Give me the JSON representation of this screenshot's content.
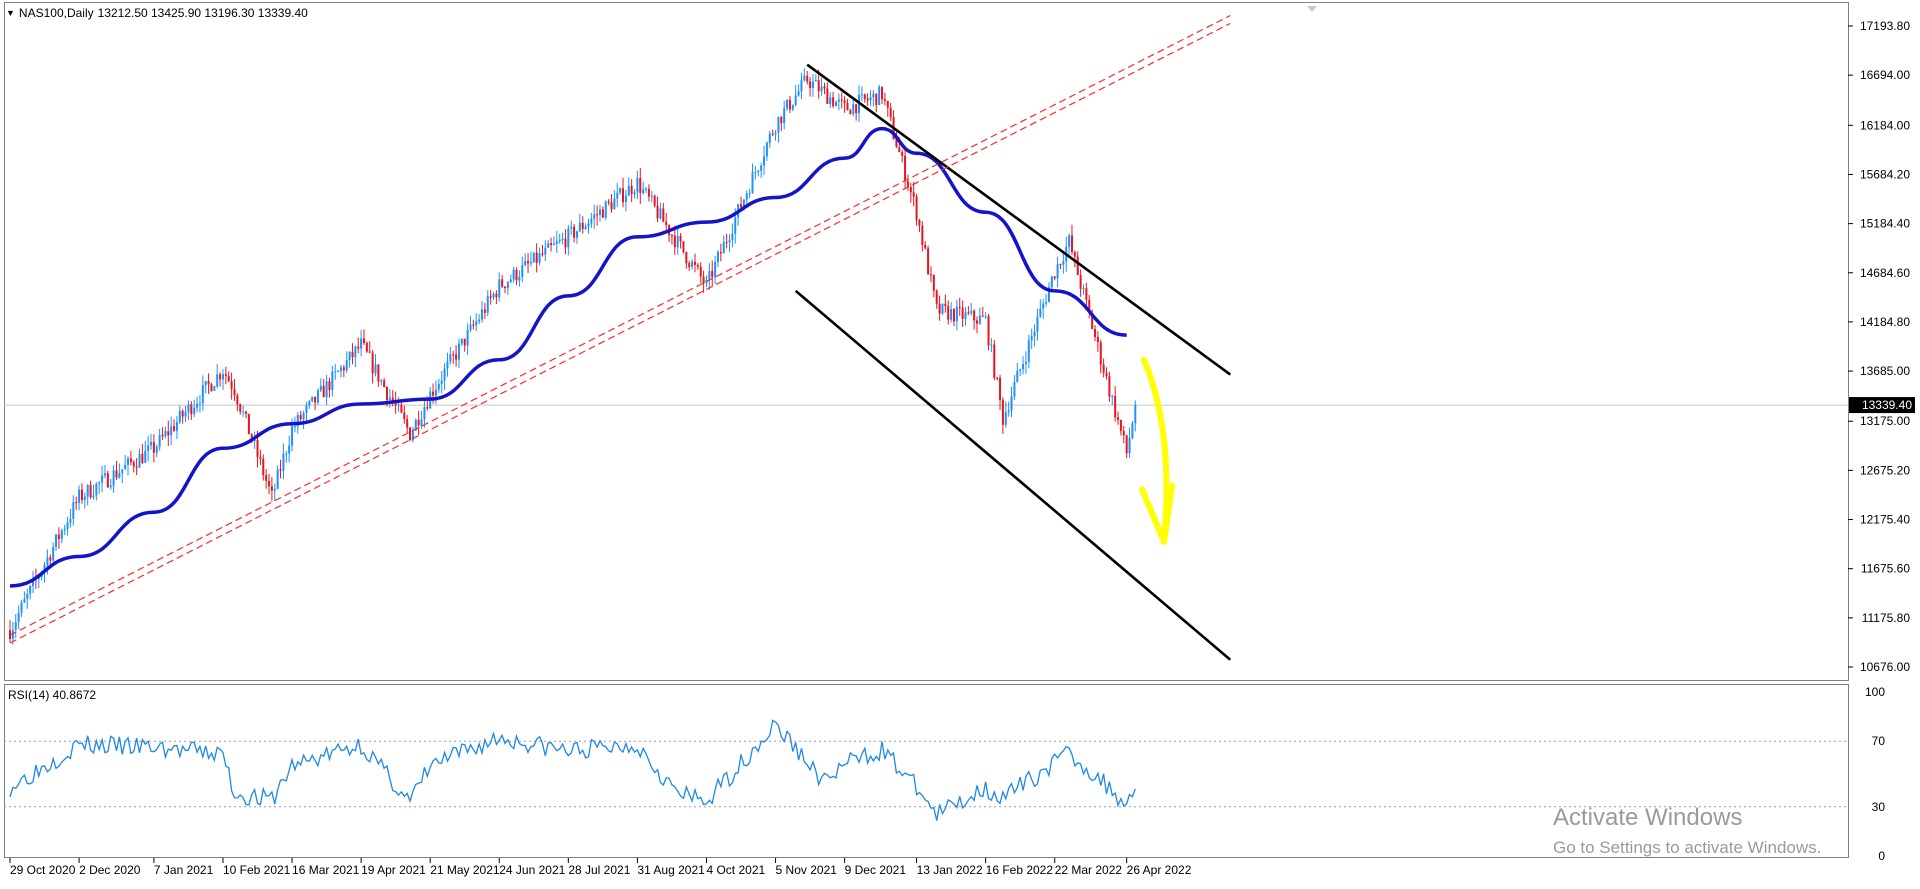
{
  "header": {
    "collapse_icon": "triangle-down-icon",
    "symbol": "NAS100,Daily",
    "ohlc": "13212.50 13425.90 13196.30 13339.40"
  },
  "rsi_label": "RSI(14) 40.8672",
  "watermark": {
    "line1": "Activate Windows",
    "line2": "Go to Settings to activate Windows."
  },
  "colors": {
    "bull": "#1e90ff",
    "bear": "#e8141e",
    "ma": "#1414c8",
    "trend": "#000000",
    "support": "#ff2a2a",
    "arrow": "#ffff00",
    "rsi": "#1e88e5",
    "price_line": "#c8c8c8"
  },
  "chart_data": [
    {
      "type": "candlestick",
      "symbol": "NAS100",
      "timeframe": "Daily",
      "y_ticks": [
        17193.8,
        16694.0,
        16184.0,
        15684.2,
        15184.4,
        14684.6,
        14184.8,
        13685.0,
        13175.0,
        12675.2,
        12175.4,
        11675.6,
        11175.8,
        10676.0
      ],
      "y_tick_labels": [
        "17193.80",
        "16694.00",
        "16184.00",
        "15684.20",
        "15184.40",
        "14684.60",
        "14184.80",
        "13685.00",
        "13175.00",
        "12675.20",
        "12175.40",
        "11675.60",
        "11175.80",
        "10676.00"
      ],
      "current_price": 13339.4,
      "current_price_label": "13339.40",
      "x_labels": [
        "29 Oct 2020",
        "2 Dec 2020",
        "7 Jan 2021",
        "10 Feb 2021",
        "16 Mar 2021",
        "19 Apr 2021",
        "21 May 2021",
        "24 Jun 2021",
        "28 Jul 2021",
        "31 Aug 2021",
        "4 Oct 2021",
        "5 Nov 2021",
        "9 Dec 2021",
        "13 Jan 2022",
        "16 Feb 2022",
        "22 Mar 2022",
        "26 Apr 2022"
      ],
      "close_path": [
        [
          "29 Oct 2020",
          11050
        ],
        [
          "2 Dec 2020",
          12400
        ],
        [
          "7 Jan 2021",
          12900
        ],
        [
          "10 Feb 2021",
          13700
        ],
        [
          "16 Feb 2021",
          13500
        ],
        [
          "5 Mar 2021",
          12400
        ],
        [
          "16 Mar 2021",
          13100
        ],
        [
          "19 Apr 2021",
          13950
        ],
        [
          "12 May 2021",
          13050
        ],
        [
          "21 May 2021",
          13450
        ],
        [
          "24 Jun 2021",
          14550
        ],
        [
          "28 Jul 2021",
          15050
        ],
        [
          "31 Aug 2021",
          15600
        ],
        [
          "4 Oct 2021",
          14550
        ],
        [
          "5 Nov 2021",
          16200
        ],
        [
          "22 Nov 2021",
          16650
        ],
        [
          "9 Dec 2021",
          16350
        ],
        [
          "28 Dec 2021",
          16500
        ],
        [
          "13 Jan 2022",
          15300
        ],
        [
          "24 Jan 2022",
          14300
        ],
        [
          "16 Feb 2022",
          14200
        ],
        [
          "24 Feb 2022",
          13200
        ],
        [
          "22 Mar 2022",
          14700
        ],
        [
          "29 Mar 2022",
          15000
        ],
        [
          "26 Apr 2022",
          12850
        ],
        [
          "29 Apr 2022",
          13339.4
        ]
      ],
      "moving_average": [
        [
          "29 Oct 2020",
          11500
        ],
        [
          "2 Dec 2020",
          11800
        ],
        [
          "7 Jan 2021",
          12250
        ],
        [
          "10 Feb 2021",
          12900
        ],
        [
          "16 Mar 2021",
          13150
        ],
        [
          "19 Apr 2021",
          13350
        ],
        [
          "21 May 2021",
          13400
        ],
        [
          "24 Jun 2021",
          13800
        ],
        [
          "28 Jul 2021",
          14450
        ],
        [
          "31 Aug 2021",
          15050
        ],
        [
          "4 Oct 2021",
          15200
        ],
        [
          "5 Nov 2021",
          15450
        ],
        [
          "9 Dec 2021",
          15850
        ],
        [
          "28 Dec 2021",
          16150
        ],
        [
          "13 Jan 2022",
          15900
        ],
        [
          "16 Feb 2022",
          15300
        ],
        [
          "22 Mar 2022",
          14500
        ],
        [
          "26 Apr 2022",
          14050
        ]
      ],
      "trend_lines": [
        {
          "name": "channel-upper",
          "color": "#000000",
          "points": [
            [
              "20 Nov 2021",
              16800
            ],
            [
              "15 Jun 2022",
              13650
            ]
          ]
        },
        {
          "name": "channel-lower",
          "color": "#000000",
          "points": [
            [
              "16 Nov 2021",
              14500
            ],
            [
              "15 Jun 2022",
              10750
            ]
          ]
        },
        {
          "name": "support-1",
          "color": "#ff2a2a",
          "dashed": true,
          "points": [
            [
              "29 Oct 2020",
              11000
            ],
            [
              "15 Jun 2022",
              17300
            ]
          ]
        },
        {
          "name": "support-2",
          "color": "#ff2a2a",
          "dashed": true,
          "points": [
            [
              "29 Oct 2020",
              10920
            ],
            [
              "15 Jun 2022",
              17220
            ]
          ]
        }
      ],
      "arrow": {
        "color": "#ffff00",
        "from": [
          "4 May 2022",
          13800
        ],
        "to": [
          "13 May 2022",
          11950
        ]
      }
    },
    {
      "type": "line",
      "name": "RSI(14)",
      "value": 40.8672,
      "y_ticks": [
        0,
        30,
        70,
        100
      ],
      "y_tick_labels": [
        "0",
        "30",
        "70",
        "100"
      ],
      "levels": [
        30,
        70
      ],
      "x_labels": [
        "29 Oct 2020",
        "2 Dec 2020",
        "7 Jan 2021",
        "10 Feb 2021",
        "16 Mar 2021",
        "19 Apr 2021",
        "21 May 2021",
        "24 Jun 2021",
        "28 Jul 2021",
        "31 Aug 2021",
        "4 Oct 2021",
        "5 Nov 2021",
        "9 Dec 2021",
        "13 Jan 2022",
        "16 Feb 2022",
        "22 Mar 2022",
        "26 Apr 2022"
      ],
      "values_path": [
        [
          "29 Oct 2020",
          42
        ],
        [
          "2 Dec 2020",
          68
        ],
        [
          "7 Jan 2021",
          66
        ],
        [
          "10 Feb 2021",
          62
        ],
        [
          "16 Feb 2021",
          38
        ],
        [
          "5 Mar 2021",
          34
        ],
        [
          "16 Mar 2021",
          55
        ],
        [
          "19 Apr 2021",
          68
        ],
        [
          "12 May 2021",
          33
        ],
        [
          "21 May 2021",
          55
        ],
        [
          "24 Jun 2021",
          72
        ],
        [
          "28 Jul 2021",
          64
        ],
        [
          "31 Aug 2021",
          68
        ],
        [
          "20 Sep 2021",
          38
        ],
        [
          "4 Oct 2021",
          33
        ],
        [
          "5 Nov 2021",
          80
        ],
        [
          "30 Nov 2021",
          45
        ],
        [
          "9 Dec 2021",
          56
        ],
        [
          "28 Dec 2021",
          65
        ],
        [
          "13 Jan 2022",
          42
        ],
        [
          "24 Jan 2022",
          25
        ],
        [
          "16 Feb 2022",
          42
        ],
        [
          "24 Feb 2022",
          35
        ],
        [
          "29 Mar 2022",
          63
        ],
        [
          "26 Apr 2022",
          32
        ],
        [
          "29 Apr 2022",
          40.8672
        ]
      ]
    }
  ]
}
